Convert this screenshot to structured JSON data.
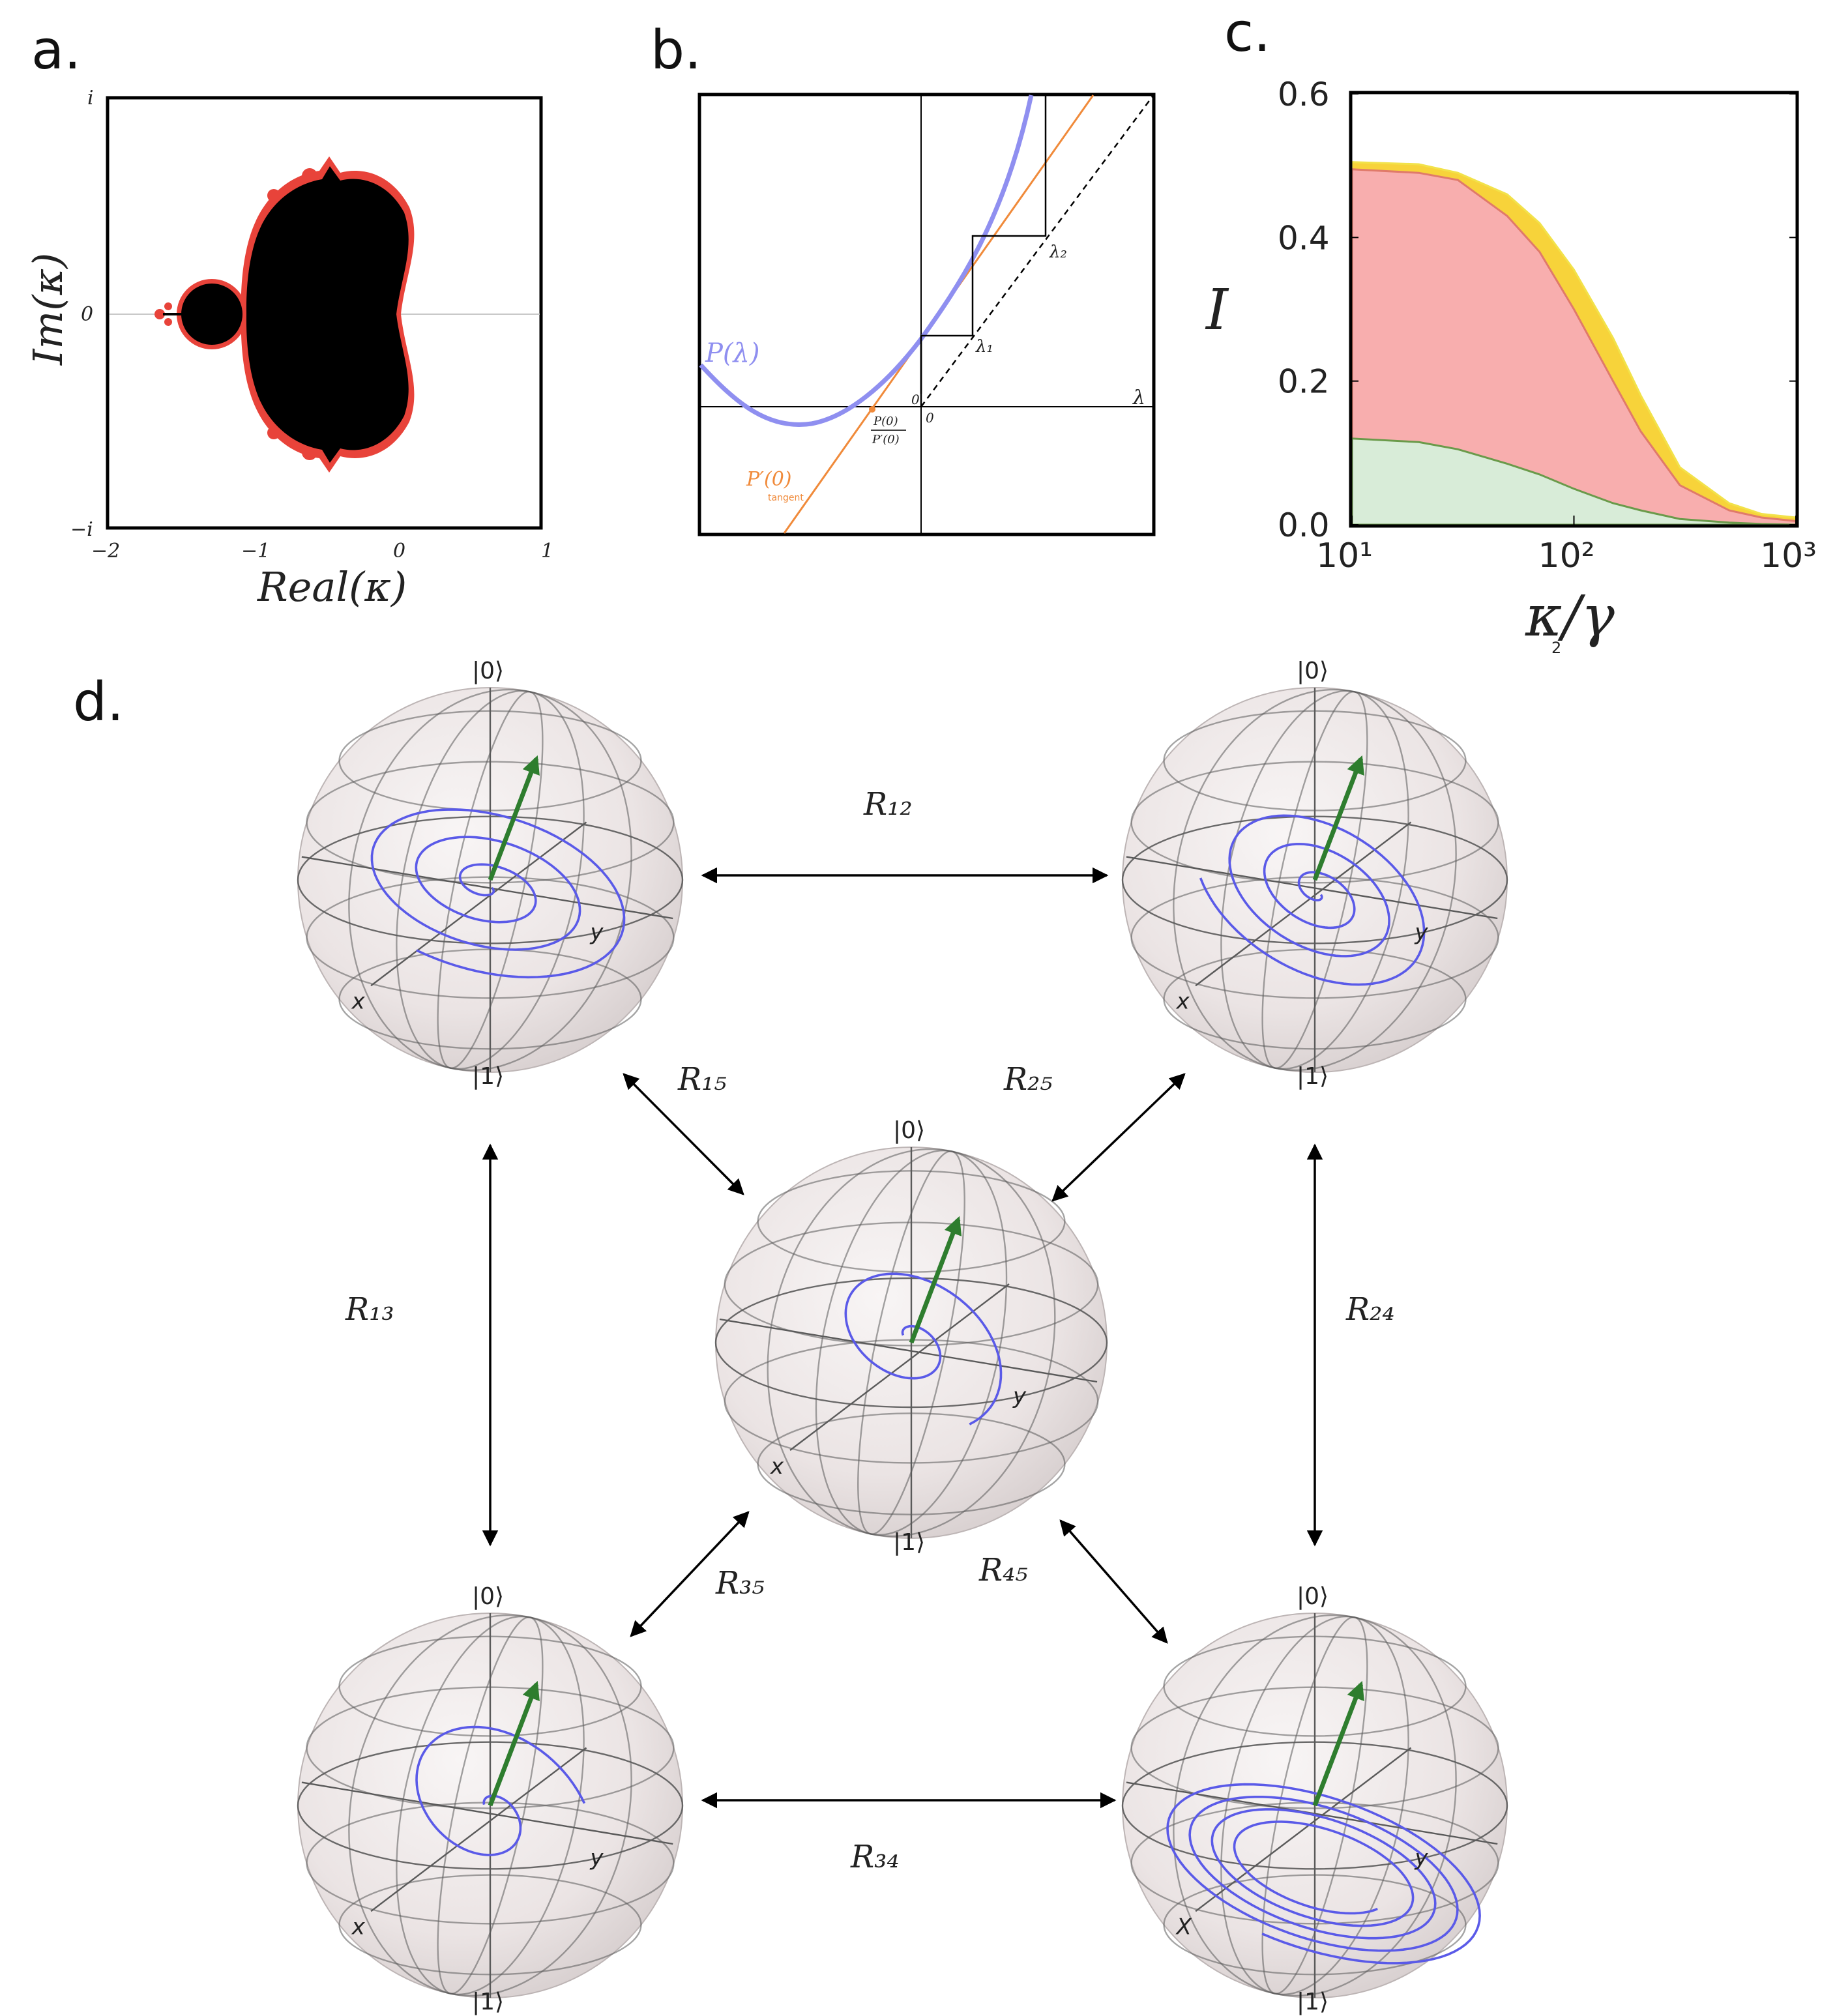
{
  "panels": {
    "a": {
      "letter": "a.",
      "xlabel": "Real(κ)",
      "ylabel": "Im(κ)",
      "xticks": [
        "−2",
        "−1",
        "0",
        "1"
      ],
      "yticks": [
        "i",
        "0",
        "−i"
      ],
      "colors": {
        "set": "#000000",
        "boundary": "#e8433a",
        "axis": "#c8c8c8"
      }
    },
    "b": {
      "letter": "b.",
      "curve_label": "P(λ)",
      "tangent_label": "P′(0)",
      "tangent_sub": "tangent",
      "lambda_label": "λ",
      "lambda1": "λ₁",
      "lambda2": "λ₂",
      "zero_a": "0",
      "zero_b": "0",
      "root_num": "P(0)",
      "root_den": "P′(0)",
      "colors": {
        "curve": "#8f8ff0",
        "tangent": "#f08a3a"
      }
    },
    "c": {
      "letter": "c.",
      "ylabel": "I",
      "xlabel": "κ/γ",
      "xlabel_sub": "2"
    },
    "d": {
      "letter": "d.",
      "ket0": "|0⟩",
      "ket1": "|1⟩",
      "x": "x",
      "y": "y",
      "X": "X",
      "rates": {
        "r12": "R₁₂",
        "r15": "R₁₅",
        "r25": "R₂₅",
        "r13": "R₁₃",
        "r24": "R₂₄",
        "r35": "R₃₅",
        "r45": "R₄₅",
        "r34": "R₃₄"
      },
      "colors": {
        "sphere": "#ece6e6",
        "wire": "#5a5a5a",
        "trajectory": "#5a5ae8",
        "vector": "#2e7d2e"
      }
    }
  },
  "chart_data": {
    "type": "area",
    "xlabel": "κ/γ",
    "ylabel": "I",
    "xscale": "log",
    "xlim": [
      10,
      1000
    ],
    "ylim": [
      0,
      0.6
    ],
    "xtick_labels": [
      "10¹",
      "10²",
      "10³"
    ],
    "ytick_labels": [
      "0.0",
      "0.2",
      "0.4",
      "0.6"
    ],
    "x": [
      10,
      20,
      30,
      50,
      70,
      100,
      150,
      200,
      300,
      500,
      700,
      1000
    ],
    "series": [
      {
        "color": "#f7d33a",
        "values": [
          0.505,
          0.502,
          0.49,
          0.46,
          0.42,
          0.355,
          0.26,
          0.18,
          0.08,
          0.03,
          0.015,
          0.01
        ]
      },
      {
        "color": "#f8aeae",
        "values": [
          0.495,
          0.49,
          0.48,
          0.43,
          0.38,
          0.3,
          0.2,
          0.13,
          0.055,
          0.02,
          0.01,
          0.005
        ]
      },
      {
        "color": "#d8ecd8",
        "values": [
          0.12,
          0.115,
          0.105,
          0.085,
          0.07,
          0.05,
          0.03,
          0.02,
          0.008,
          0.003,
          0.001,
          0.0
        ]
      }
    ]
  }
}
